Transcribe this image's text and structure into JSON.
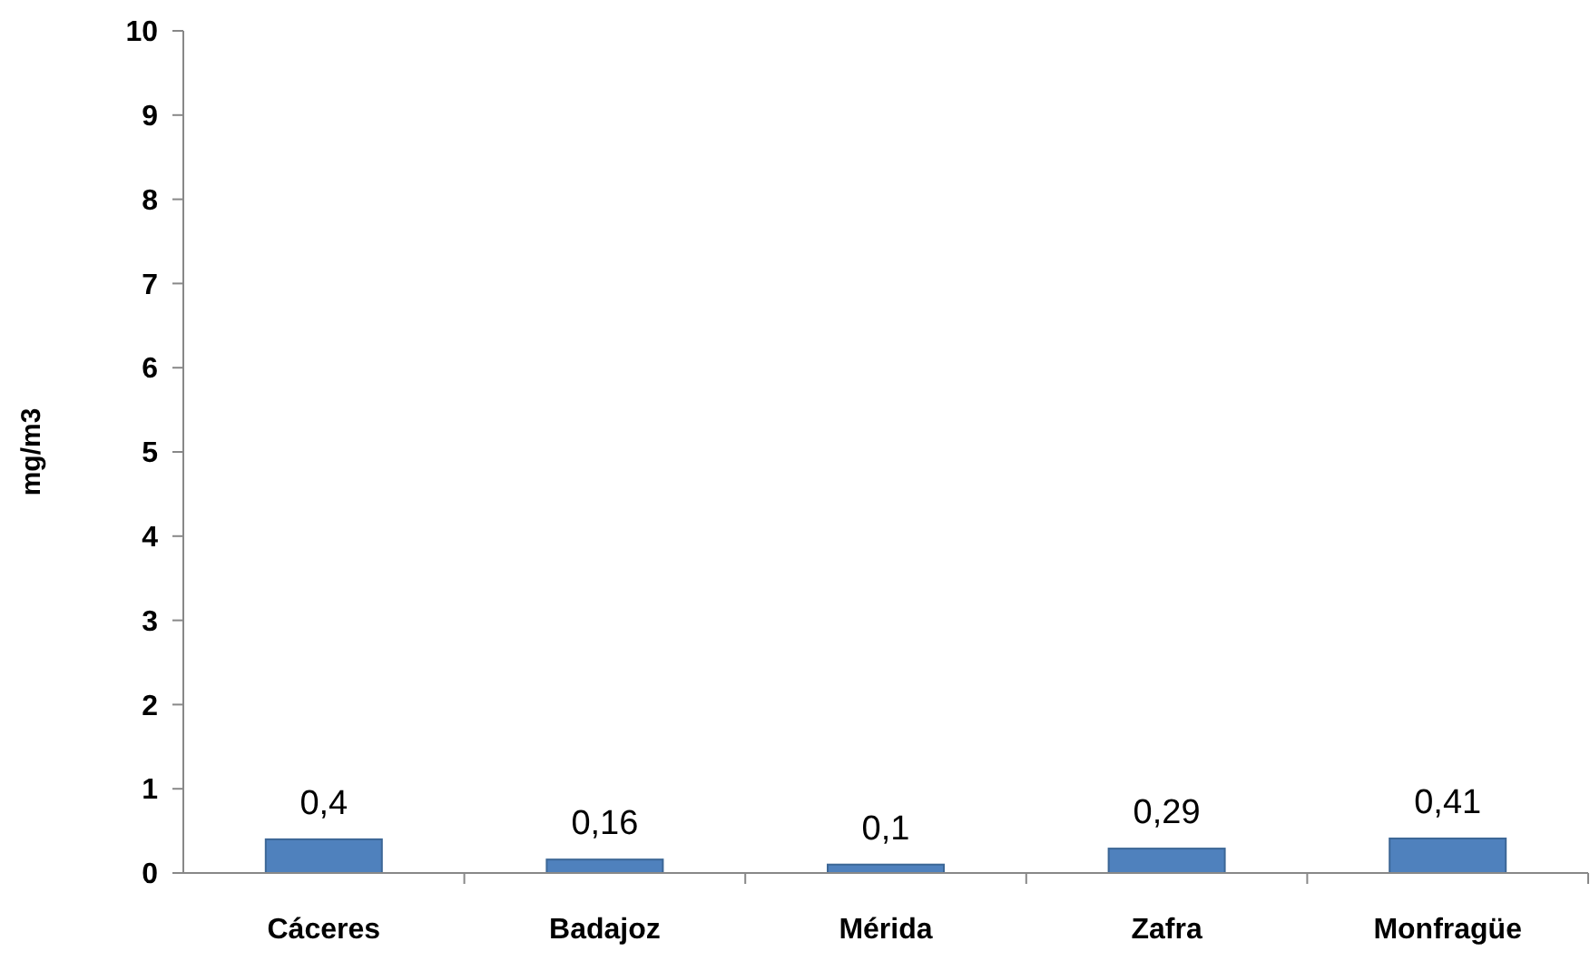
{
  "chart_data": {
    "type": "bar",
    "ylabel": "mg/m3",
    "categories": [
      "Cáceres",
      "Badajoz",
      "Mérida",
      "Zafra",
      "Monfragüe"
    ],
    "values": [
      0.4,
      0.16,
      0.1,
      0.29,
      0.41
    ],
    "value_labels": [
      "0,4",
      "0,16",
      "0,1",
      "0,29",
      "0,41"
    ],
    "color": "#4f81bd",
    "ylim": [
      0,
      10
    ],
    "yticks": [
      0,
      1,
      2,
      3,
      4,
      5,
      6,
      7,
      8,
      9,
      10
    ],
    "grid": false
  }
}
